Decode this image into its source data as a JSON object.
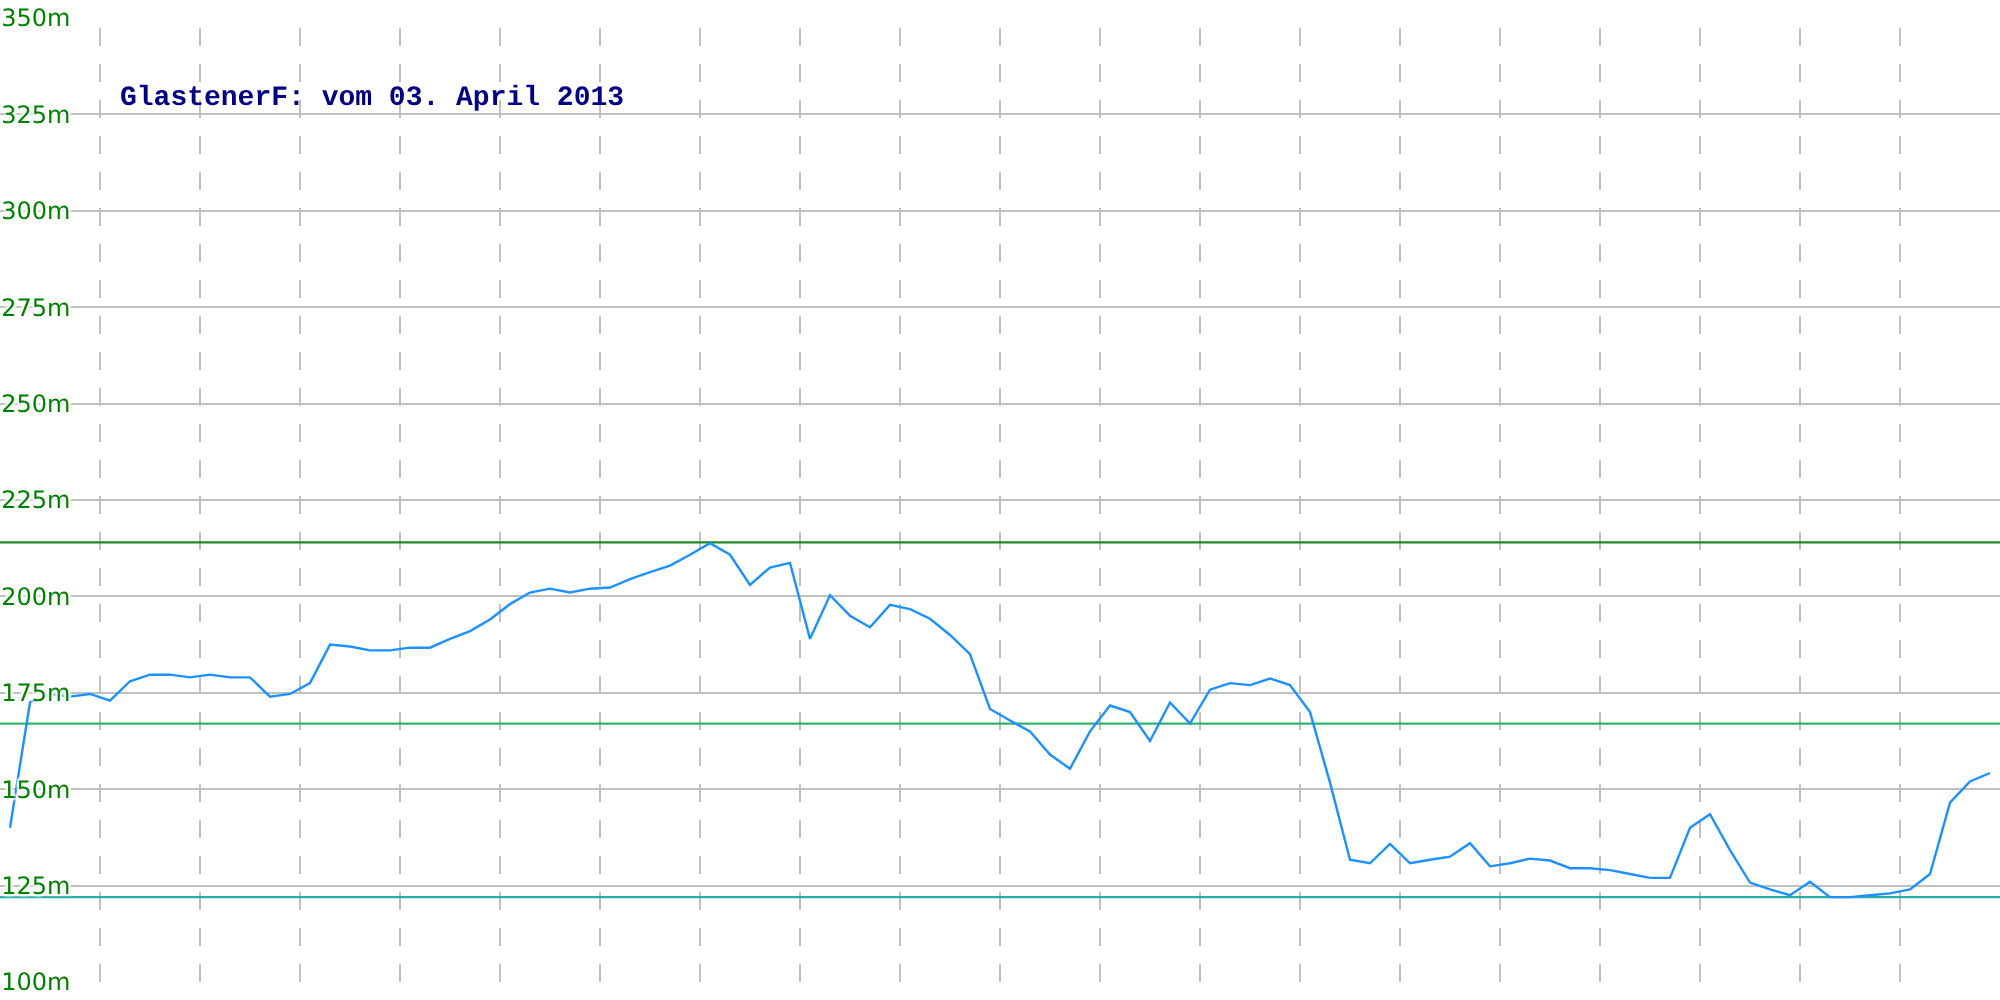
{
  "chart_data": {
    "type": "line",
    "title": "GlastenerF: vom 03. April 2013",
    "categories": [
      null,
      null,
      null,
      null,
      null,
      null,
      null,
      null,
      null,
      null,
      null,
      null,
      null,
      null,
      null,
      null,
      null,
      null,
      null,
      null,
      null,
      null,
      null,
      null,
      null,
      null,
      null,
      null,
      null,
      null,
      null,
      null,
      null,
      null,
      null,
      null,
      null,
      null,
      null,
      null,
      null,
      null,
      null,
      null,
      null,
      null,
      null,
      null,
      null,
      null,
      null,
      null,
      null,
      null,
      null,
      null,
      null,
      null,
      null,
      null,
      null,
      null,
      null,
      null,
      null,
      null,
      null,
      null,
      null,
      null,
      null,
      null,
      null,
      null,
      null,
      null,
      null,
      null,
      null,
      null,
      null,
      null,
      null,
      null,
      null,
      null,
      null,
      null,
      null,
      null,
      null,
      null,
      null,
      null,
      null,
      null,
      null,
      null,
      null,
      null
    ],
    "series": [
      {
        "color": "#1e90ff",
        "values": [
          140,
          172.5,
          174.7,
          174,
          174.7,
          173,
          178,
          179.7,
          179.7,
          179,
          179.7,
          179,
          179,
          174,
          174.7,
          177.5,
          187.5,
          187,
          186,
          186,
          186.7,
          186.7,
          189,
          191,
          194,
          198,
          201,
          202,
          201,
          202,
          202.3,
          204.5,
          206.3,
          208,
          210.8,
          213.8,
          210.8,
          203,
          207.5,
          208.7,
          189,
          200.3,
          195,
          192,
          197.8,
          196.7,
          194.2,
          190,
          185,
          170.8,
          167.8,
          165,
          159,
          155.3,
          165,
          171.7,
          170,
          162.5,
          172.5,
          167,
          175.8,
          177.5,
          177,
          178.7,
          177,
          170,
          151.7,
          131.7,
          130.8,
          135.8,
          130.8,
          131.7,
          132.5,
          136,
          130,
          130.8,
          132,
          131.5,
          129.5,
          129.5,
          129,
          128,
          127,
          127,
          140,
          143.5,
          134.2,
          125.8,
          124,
          122.5,
          126,
          122,
          122,
          122.5,
          123,
          124,
          128,
          146.5,
          152,
          154.2
        ]
      }
    ],
    "ylim": [
      100,
      350
    ],
    "yticks": [
      {
        "value": 100,
        "label": "100m"
      },
      {
        "value": 125,
        "label": "125m"
      },
      {
        "value": 150,
        "label": "150m"
      },
      {
        "value": 175,
        "label": "175m"
      },
      {
        "value": 200,
        "label": "200m"
      },
      {
        "value": 225,
        "label": "225m"
      },
      {
        "value": 250,
        "label": "250m"
      },
      {
        "value": 275,
        "label": "275m"
      },
      {
        "value": 300,
        "label": "300m"
      },
      {
        "value": 325,
        "label": "325m"
      },
      {
        "value": 350,
        "label": "350m"
      }
    ],
    "tick_labels": "y",
    "grid": true,
    "marker": "none",
    "line_style": "solid",
    "ref_lines": [
      {
        "axis": "y",
        "value": 214,
        "color": "#1e8c1e"
      },
      {
        "axis": "y",
        "value": 167,
        "color": "#33b36b"
      },
      {
        "axis": "y",
        "value": 122,
        "color": "#22b0a8"
      }
    ]
  }
}
